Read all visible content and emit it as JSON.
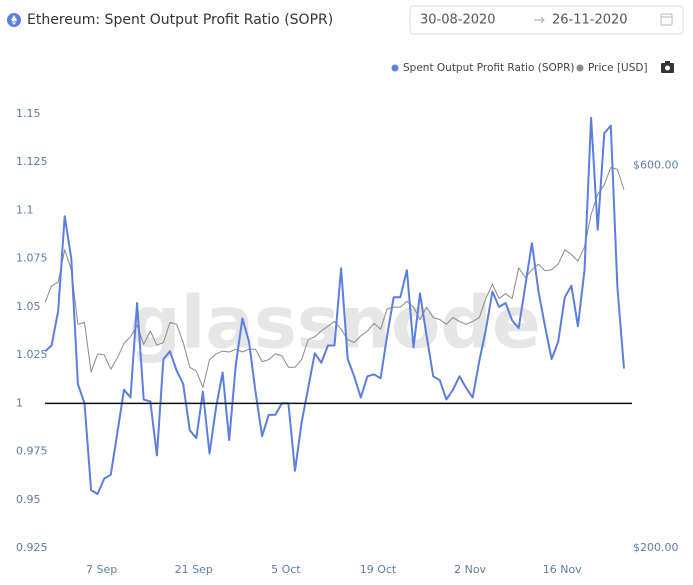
{
  "chart_data": {
    "type": "line",
    "title": "Ethereum: Spent Output Profit Ratio (SOPR)",
    "date_range": {
      "from": "30-08-2020",
      "to": "26-11-2020"
    },
    "watermark": "glassnode",
    "x": [
      "30 Aug",
      "31 Aug",
      "1 Sep",
      "2 Sep",
      "3 Sep",
      "4 Sep",
      "5 Sep",
      "6 Sep",
      "7 Sep",
      "8 Sep",
      "9 Sep",
      "10 Sep",
      "11 Sep",
      "12 Sep",
      "13 Sep",
      "14 Sep",
      "15 Sep",
      "16 Sep",
      "17 Sep",
      "18 Sep",
      "19 Sep",
      "20 Sep",
      "21 Sep",
      "22 Sep",
      "23 Sep",
      "24 Sep",
      "25 Sep",
      "26 Sep",
      "27 Sep",
      "28 Sep",
      "29 Sep",
      "30 Sep",
      "1 Oct",
      "2 Oct",
      "3 Oct",
      "4 Oct",
      "5 Oct",
      "6 Oct",
      "7 Oct",
      "8 Oct",
      "9 Oct",
      "10 Oct",
      "11 Oct",
      "12 Oct",
      "13 Oct",
      "14 Oct",
      "15 Oct",
      "16 Oct",
      "17 Oct",
      "18 Oct",
      "19 Oct",
      "20 Oct",
      "21 Oct",
      "22 Oct",
      "23 Oct",
      "24 Oct",
      "25 Oct",
      "26 Oct",
      "27 Oct",
      "28 Oct",
      "29 Oct",
      "30 Oct",
      "31 Oct",
      "1 Nov",
      "2 Nov",
      "3 Nov",
      "4 Nov",
      "5 Nov",
      "6 Nov",
      "7 Nov",
      "8 Nov",
      "9 Nov",
      "10 Nov",
      "11 Nov",
      "12 Nov",
      "13 Nov",
      "14 Nov",
      "15 Nov",
      "16 Nov",
      "17 Nov",
      "18 Nov",
      "19 Nov",
      "20 Nov",
      "21 Nov",
      "22 Nov",
      "23 Nov",
      "24 Nov",
      "25 Nov",
      "26 Nov"
    ],
    "xticks": [
      "7 Sep",
      "21 Sep",
      "5 Oct",
      "19 Oct",
      "2 Nov",
      "16 Nov"
    ],
    "series": [
      {
        "name": "Spent Output Profit Ratio (SOPR)",
        "color": "#5b7ee0",
        "axis": "y",
        "values": [
          1.027,
          1.03,
          1.048,
          1.097,
          1.075,
          1.01,
          1.0,
          0.955,
          0.953,
          0.961,
          0.963,
          0.985,
          1.007,
          1.003,
          1.052,
          1.002,
          1.001,
          0.973,
          1.023,
          1.027,
          1.017,
          1.01,
          0.986,
          0.982,
          1.006,
          0.974,
          0.998,
          1.016,
          0.981,
          1.02,
          1.044,
          1.032,
          1.006,
          0.983,
          0.994,
          0.994,
          1.0,
          1.0,
          0.965,
          0.99,
          1.008,
          1.026,
          1.021,
          1.03,
          1.03,
          1.07,
          1.023,
          1.014,
          1.003,
          1.014,
          1.015,
          1.013,
          1.035,
          1.055,
          1.055,
          1.069,
          1.029,
          1.057,
          1.035,
          1.014,
          1.012,
          1.002,
          1.007,
          1.014,
          1.008,
          1.003,
          1.022,
          1.038,
          1.058,
          1.05,
          1.052,
          1.043,
          1.039,
          1.061,
          1.083,
          1.058,
          1.04,
          1.023,
          1.032,
          1.055,
          1.061,
          1.04,
          1.069,
          1.148,
          1.09,
          1.14,
          1.144,
          1.06,
          1.018
        ]
      },
      {
        "name": "Price [USD]",
        "color": "#8a8a8a",
        "axis": "y2",
        "values": [
          457,
          474,
          478,
          512,
          491,
          434,
          436,
          384,
          403,
          402,
          387,
          399,
          414,
          421,
          433,
          413,
          427,
          412,
          415,
          436,
          434,
          415,
          389,
          385,
          368,
          397,
          403,
          406,
          405,
          408,
          405,
          408,
          408,
          395,
          397,
          403,
          401,
          389,
          389,
          397,
          418,
          421,
          427,
          432,
          437,
          429,
          418,
          415,
          422,
          427,
          435,
          429,
          450,
          452,
          452,
          458,
          452,
          439,
          452,
          441,
          439,
          434,
          441,
          437,
          434,
          437,
          441,
          461,
          476,
          461,
          466,
          461,
          493,
          483,
          491,
          497,
          490,
          491,
          497,
          512,
          507,
          500,
          515,
          549,
          570,
          580,
          598,
          596,
          575
        ]
      }
    ],
    "reference_line": 1,
    "ylim": [
      0.925,
      1.15
    ],
    "yticks": [
      0.925,
      0.95,
      0.975,
      1,
      1.025,
      1.05,
      1.075,
      1.1,
      1.125,
      1.15
    ],
    "y2lim": [
      200,
      654
    ],
    "y2ticks": [
      {
        "value": 200,
        "label": "$200.00"
      },
      {
        "value": 600,
        "label": "$600.00"
      }
    ],
    "grid": false,
    "legend": "top-right"
  }
}
